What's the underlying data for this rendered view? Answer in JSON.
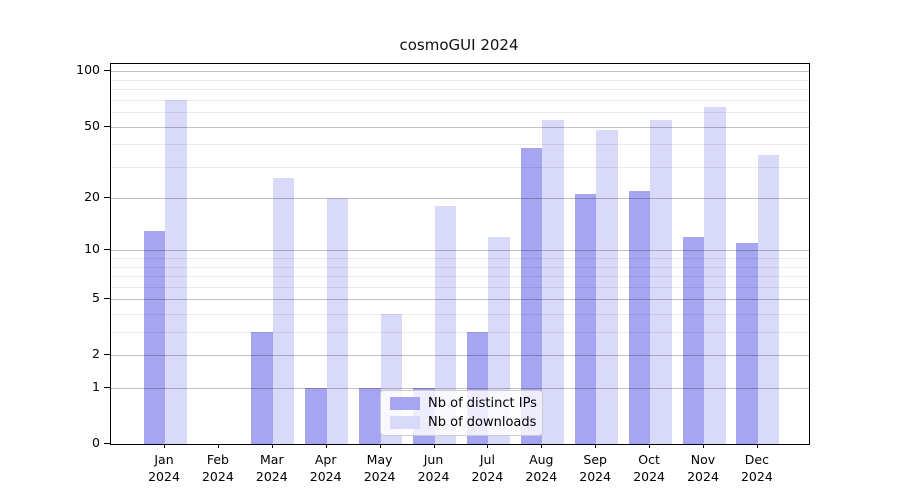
{
  "chart_data": {
    "type": "bar",
    "title": "cosmoGUI 2024",
    "categories": [
      "Jan",
      "Feb",
      "Mar",
      "Apr",
      "May",
      "Jun",
      "Jul",
      "Aug",
      "Sep",
      "Oct",
      "Nov",
      "Dec"
    ],
    "category_year": "2024",
    "series": [
      {
        "name": "Nb of distinct IPs",
        "color": "#a5a5f2",
        "values": [
          13,
          0,
          3,
          1,
          1,
          1,
          3,
          38,
          21,
          22,
          12,
          11
        ]
      },
      {
        "name": "Nb of downloads",
        "color": "#d9d9f9",
        "values": [
          70,
          0,
          26,
          20,
          4,
          18,
          12,
          54,
          48,
          54,
          64,
          35
        ]
      }
    ],
    "y_scale": "log1p",
    "ylim": [
      0,
      110
    ],
    "y_major_ticks": [
      0,
      1,
      2,
      5,
      10,
      20,
      50,
      100
    ],
    "y_minor_gridlines": [
      3,
      4,
      6,
      7,
      8,
      9,
      30,
      40,
      60,
      70,
      80,
      90
    ],
    "grid": true,
    "legend_position": "lower center",
    "axis_color": "#000000",
    "background_color": "#ffffff"
  }
}
